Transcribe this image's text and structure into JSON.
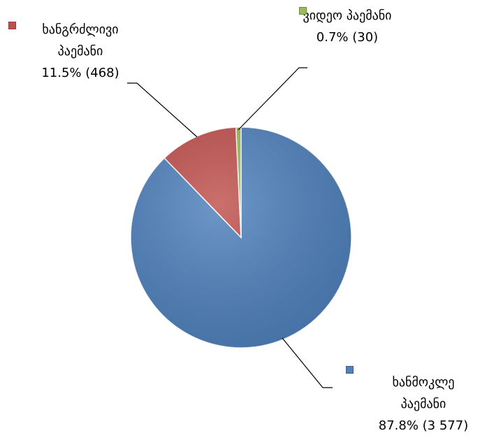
{
  "chart_data": {
    "type": "pie",
    "categories": [
      "ხანმოკლე პაემანი",
      "ხანგრძლივი პაემანი",
      "ვიდეო პაემანი"
    ],
    "values": [
      3577,
      468,
      30
    ],
    "value_labels": [
      "87.8% (3 577)",
      "11.5% (468)",
      "0.7% (30)"
    ],
    "colors": [
      "#4f81bd",
      "#c0504d",
      "#9bbb59"
    ]
  }
}
